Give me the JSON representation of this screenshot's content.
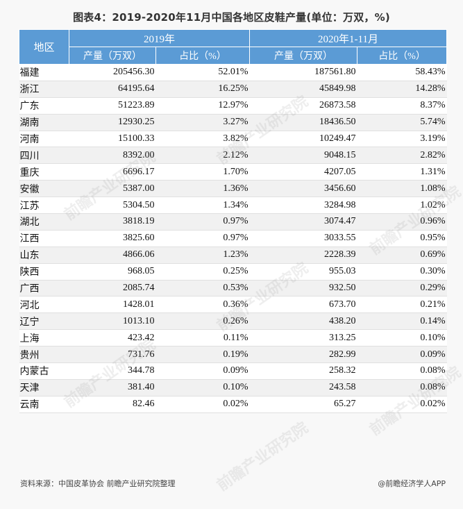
{
  "title": "图表4：2019-2020年11月中国各地区皮鞋产量(单位：万双，%)",
  "header": {
    "region": "地区",
    "year2019": "2019年",
    "year2020": "2020年1-11月",
    "output": "产量（万双）",
    "share": "占比（%）"
  },
  "rows": [
    {
      "region": "福建",
      "out2019": "205456.30",
      "share2019": "52.01%",
      "out2020": "187561.80",
      "share2020": "58.43%"
    },
    {
      "region": "浙江",
      "out2019": "64195.64",
      "share2019": "16.25%",
      "out2020": "45849.98",
      "share2020": "14.28%"
    },
    {
      "region": "广东",
      "out2019": "51223.89",
      "share2019": "12.97%",
      "out2020": "26873.58",
      "share2020": "8.37%"
    },
    {
      "region": "湖南",
      "out2019": "12930.25",
      "share2019": "3.27%",
      "out2020": "18436.50",
      "share2020": "5.74%"
    },
    {
      "region": "河南",
      "out2019": "15100.33",
      "share2019": "3.82%",
      "out2020": "10249.47",
      "share2020": "3.19%"
    },
    {
      "region": "四川",
      "out2019": "8392.00",
      "share2019": "2.12%",
      "out2020": "9048.15",
      "share2020": "2.82%"
    },
    {
      "region": "重庆",
      "out2019": "6696.17",
      "share2019": "1.70%",
      "out2020": "4207.05",
      "share2020": "1.31%"
    },
    {
      "region": "安徽",
      "out2019": "5387.00",
      "share2019": "1.36%",
      "out2020": "3456.60",
      "share2020": "1.08%"
    },
    {
      "region": "江苏",
      "out2019": "5304.50",
      "share2019": "1.34%",
      "out2020": "3284.98",
      "share2020": "1.02%"
    },
    {
      "region": "湖北",
      "out2019": "3818.19",
      "share2019": "0.97%",
      "out2020": "3074.47",
      "share2020": "0.96%"
    },
    {
      "region": "江西",
      "out2019": "3825.60",
      "share2019": "0.97%",
      "out2020": "3033.55",
      "share2020": "0.95%"
    },
    {
      "region": "山东",
      "out2019": "4866.06",
      "share2019": "1.23%",
      "out2020": "2228.39",
      "share2020": "0.69%"
    },
    {
      "region": "陕西",
      "out2019": "968.05",
      "share2019": "0.25%",
      "out2020": "955.03",
      "share2020": "0.30%"
    },
    {
      "region": "广西",
      "out2019": "2085.74",
      "share2019": "0.53%",
      "out2020": "932.50",
      "share2020": "0.29%"
    },
    {
      "region": "河北",
      "out2019": "1428.01",
      "share2019": "0.36%",
      "out2020": "673.70",
      "share2020": "0.21%"
    },
    {
      "region": "辽宁",
      "out2019": "1013.10",
      "share2019": "0.26%",
      "out2020": "438.20",
      "share2020": "0.14%"
    },
    {
      "region": "上海",
      "out2019": "423.42",
      "share2019": "0.11%",
      "out2020": "313.25",
      "share2020": "0.10%"
    },
    {
      "region": "贵州",
      "out2019": "731.76",
      "share2019": "0.19%",
      "out2020": "282.99",
      "share2020": "0.09%"
    },
    {
      "region": "内蒙古",
      "out2019": "344.78",
      "share2019": "0.09%",
      "out2020": "258.32",
      "share2020": "0.08%"
    },
    {
      "region": "天津",
      "out2019": "381.40",
      "share2019": "0.10%",
      "out2020": "243.58",
      "share2020": "0.08%"
    },
    {
      "region": "云南",
      "out2019": "82.46",
      "share2019": "0.02%",
      "out2020": "65.27",
      "share2020": "0.02%"
    }
  ],
  "footer": {
    "source": "资料来源：中国皮革协会 前瞻产业研究院整理",
    "brand": "@前瞻经济学人APP"
  },
  "watermark_text": "前瞻产业研究院",
  "colors": {
    "header_bg": "#5b9bd5",
    "header_text": "#ffffff"
  }
}
